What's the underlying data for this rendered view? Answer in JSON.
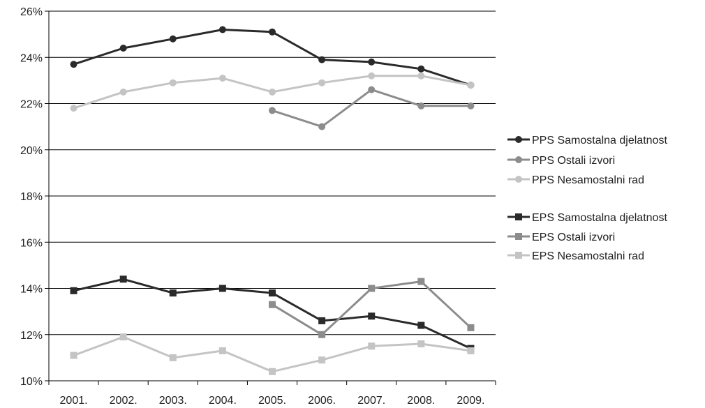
{
  "chart_data": {
    "type": "line",
    "categories": [
      "2001.",
      "2002.",
      "2003.",
      "2004.",
      "2005.",
      "2006.",
      "2007.",
      "2008.",
      "2009."
    ],
    "ylim": [
      10,
      26
    ],
    "yticks": [
      10,
      12,
      14,
      16,
      18,
      20,
      22,
      24,
      26
    ],
    "ytick_labels": [
      "10%",
      "12%",
      "14%",
      "16%",
      "18%",
      "20%",
      "22%",
      "24%",
      "26%"
    ],
    "grid": "horizontal",
    "legend_position": "right",
    "series": [
      {
        "name": "PPS Samostalna djelatnost",
        "marker": "circle",
        "color": "#2a2a2a",
        "values": [
          23.7,
          24.4,
          24.8,
          25.2,
          25.1,
          23.9,
          23.8,
          23.5,
          22.8
        ]
      },
      {
        "name": "PPS Ostali izvori",
        "marker": "circle",
        "color": "#8c8c8c",
        "values": [
          null,
          null,
          null,
          null,
          21.7,
          21.0,
          22.6,
          21.9,
          21.9
        ]
      },
      {
        "name": "PPS Nesamostalni rad",
        "marker": "circle",
        "color": "#c4c4c4",
        "values": [
          21.8,
          22.5,
          22.9,
          23.1,
          22.5,
          22.9,
          23.2,
          23.2,
          22.8
        ]
      },
      {
        "name": "EPS Samostalna djelatnost",
        "marker": "square",
        "color": "#2a2a2a",
        "values": [
          13.9,
          14.4,
          13.8,
          14.0,
          13.8,
          12.6,
          12.8,
          12.4,
          11.4
        ]
      },
      {
        "name": "EPS Ostali izvori",
        "marker": "square",
        "color": "#8c8c8c",
        "values": [
          null,
          null,
          null,
          null,
          13.3,
          12.0,
          14.0,
          14.3,
          12.3
        ]
      },
      {
        "name": "EPS Nesamostalni rad",
        "marker": "square",
        "color": "#c4c4c4",
        "values": [
          11.1,
          11.9,
          11.0,
          11.3,
          10.4,
          10.9,
          11.5,
          11.6,
          11.3
        ]
      }
    ]
  }
}
